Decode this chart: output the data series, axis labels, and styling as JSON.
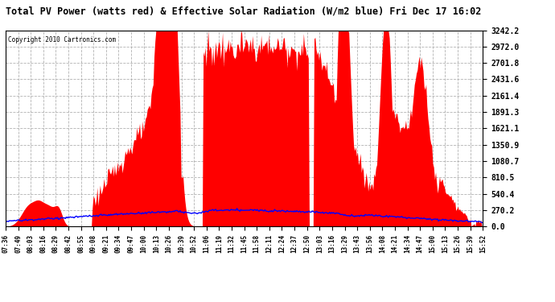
{
  "title": "Total PV Power (watts red) & Effective Solar Radiation (W/m2 blue) Fri Dec 17 16:02",
  "copyright_text": "Copyright 2010 Cartronics.com",
  "y_max": 3242.2,
  "y_ticks": [
    0.0,
    270.2,
    540.4,
    810.5,
    1080.7,
    1350.9,
    1621.1,
    1891.3,
    2161.4,
    2431.6,
    2701.8,
    2972.0,
    3242.2
  ],
  "x_tick_labels": [
    "07:36",
    "07:49",
    "08:03",
    "08:16",
    "08:29",
    "08:42",
    "08:55",
    "09:08",
    "09:21",
    "09:34",
    "09:47",
    "10:00",
    "10:13",
    "10:26",
    "10:39",
    "10:52",
    "11:06",
    "11:19",
    "11:32",
    "11:45",
    "11:58",
    "12:11",
    "12:24",
    "12:37",
    "12:50",
    "13:03",
    "13:16",
    "13:29",
    "13:43",
    "13:56",
    "14:08",
    "14:21",
    "14:34",
    "14:47",
    "15:00",
    "15:13",
    "15:26",
    "15:39",
    "15:52"
  ],
  "background_color": "#ffffff",
  "fill_color": "#ff0000",
  "line_color": "#0000ff",
  "grid_color": "#cccccc"
}
